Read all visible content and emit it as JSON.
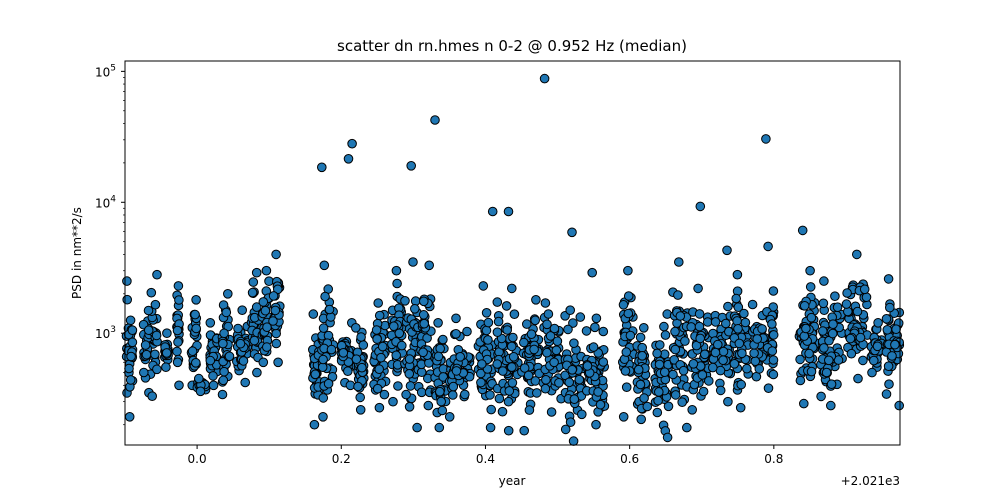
{
  "chart_data": {
    "type": "scatter",
    "title": "scatter dn rn.hmes n 0-2 @ 0.952 Hz (median)",
    "xlabel": "year",
    "ylabel": "PSD in nm**2/s",
    "x_offset_label": "+2.021e3",
    "xlim": [
      -0.1,
      0.975
    ],
    "ylim": [
      140,
      120000
    ],
    "yscale": "log",
    "grid": false,
    "legend": "none",
    "marker_color": "#1f77b4",
    "marker_edge": "#000000",
    "x_ticks": [
      "0.0",
      "0.2",
      "0.4",
      "0.6",
      "0.8"
    ],
    "x_tick_values": [
      0.0,
      0.2,
      0.4,
      0.6,
      0.8
    ],
    "y_ticks": [
      {
        "value": 1000,
        "base": "10",
        "exp": "3"
      },
      {
        "value": 10000,
        "base": "10",
        "exp": "4"
      },
      {
        "value": 100000,
        "base": "10",
        "exp": "5"
      }
    ],
    "outliers": {
      "x": [
        0.173,
        0.21,
        0.215,
        0.297,
        0.33,
        0.41,
        0.432,
        0.482,
        0.52,
        0.548,
        0.698,
        0.735,
        0.789,
        0.792,
        0.84
      ],
      "y": [
        18500,
        21500,
        28000,
        19000,
        42500,
        8500,
        8500,
        88000,
        5900,
        2900,
        9300,
        4300,
        30500,
        4600,
        6100
      ]
    },
    "clusters": [
      {
        "x0": -0.098,
        "x1": -0.088,
        "ymin": 230,
        "ymax": 2500
      },
      {
        "x0": -0.075,
        "x1": -0.055,
        "ymin": 330,
        "ymax": 2800
      },
      {
        "x0": -0.045,
        "x1": -0.04,
        "ymin": 550,
        "ymax": 1000
      },
      {
        "x0": -0.028,
        "x1": -0.025,
        "ymin": 400,
        "ymax": 2300
      },
      {
        "x0": -0.008,
        "x1": 0.0,
        "ymin": 400,
        "ymax": 1800
      },
      {
        "x0": 0.0,
        "x1": 0.012,
        "ymin": 360,
        "ymax": 450
      },
      {
        "x0": 0.018,
        "x1": 0.028,
        "ymin": 400,
        "ymax": 1200
      },
      {
        "x0": 0.035,
        "x1": 0.045,
        "ymin": 340,
        "ymax": 2000
      },
      {
        "x0": 0.055,
        "x1": 0.07,
        "ymin": 420,
        "ymax": 1500
      },
      {
        "x0": 0.075,
        "x1": 0.085,
        "ymin": 500,
        "ymax": 2900
      },
      {
        "x0": 0.09,
        "x1": 0.1,
        "ymin": 600,
        "ymax": 3000
      },
      {
        "x0": 0.105,
        "x1": 0.115,
        "ymin": 600,
        "ymax": 4000
      },
      {
        "x0": 0.16,
        "x1": 0.17,
        "ymin": 200,
        "ymax": 1400
      },
      {
        "x0": 0.172,
        "x1": 0.19,
        "ymin": 230,
        "ymax": 3300
      },
      {
        "x0": 0.2,
        "x1": 0.215,
        "ymin": 400,
        "ymax": 1200
      },
      {
        "x0": 0.22,
        "x1": 0.232,
        "ymin": 260,
        "ymax": 1100
      },
      {
        "x0": 0.245,
        "x1": 0.262,
        "ymin": 270,
        "ymax": 1700
      },
      {
        "x0": 0.27,
        "x1": 0.285,
        "ymin": 300,
        "ymax": 3000
      },
      {
        "x0": 0.288,
        "x1": 0.31,
        "ymin": 190,
        "ymax": 3500
      },
      {
        "x0": 0.31,
        "x1": 0.325,
        "ymin": 280,
        "ymax": 3300
      },
      {
        "x0": 0.33,
        "x1": 0.345,
        "ymin": 190,
        "ymax": 1200
      },
      {
        "x0": 0.35,
        "x1": 0.38,
        "ymin": 230,
        "ymax": 1300
      },
      {
        "x0": 0.39,
        "x1": 0.41,
        "ymin": 190,
        "ymax": 2300
      },
      {
        "x0": 0.415,
        "x1": 0.445,
        "ymin": 180,
        "ymax": 2200
      },
      {
        "x0": 0.45,
        "x1": 0.475,
        "ymin": 180,
        "ymax": 1800
      },
      {
        "x0": 0.48,
        "x1": 0.505,
        "ymin": 250,
        "ymax": 1700
      },
      {
        "x0": 0.51,
        "x1": 0.535,
        "ymin": 150,
        "ymax": 1500
      },
      {
        "x0": 0.54,
        "x1": 0.565,
        "ymin": 200,
        "ymax": 1300
      },
      {
        "x0": 0.59,
        "x1": 0.605,
        "ymin": 230,
        "ymax": 3000
      },
      {
        "x0": 0.61,
        "x1": 0.625,
        "ymin": 220,
        "ymax": 1100
      },
      {
        "x0": 0.635,
        "x1": 0.655,
        "ymin": 160,
        "ymax": 1400
      },
      {
        "x0": 0.66,
        "x1": 0.68,
        "ymin": 190,
        "ymax": 3500
      },
      {
        "x0": 0.685,
        "x1": 0.71,
        "ymin": 260,
        "ymax": 2200
      },
      {
        "x0": 0.715,
        "x1": 0.74,
        "ymin": 300,
        "ymax": 1600
      },
      {
        "x0": 0.745,
        "x1": 0.765,
        "ymin": 270,
        "ymax": 2800
      },
      {
        "x0": 0.77,
        "x1": 0.8,
        "ymin": 380,
        "ymax": 2100
      },
      {
        "x0": 0.835,
        "x1": 0.86,
        "ymin": 290,
        "ymax": 3000
      },
      {
        "x0": 0.865,
        "x1": 0.895,
        "ymin": 280,
        "ymax": 2500
      },
      {
        "x0": 0.9,
        "x1": 0.93,
        "ymin": 450,
        "ymax": 4000
      },
      {
        "x0": 0.935,
        "x1": 0.95,
        "ymin": 500,
        "ymax": 1200
      },
      {
        "x0": 0.955,
        "x1": 0.975,
        "ymin": 280,
        "ymax": 2600
      }
    ]
  }
}
